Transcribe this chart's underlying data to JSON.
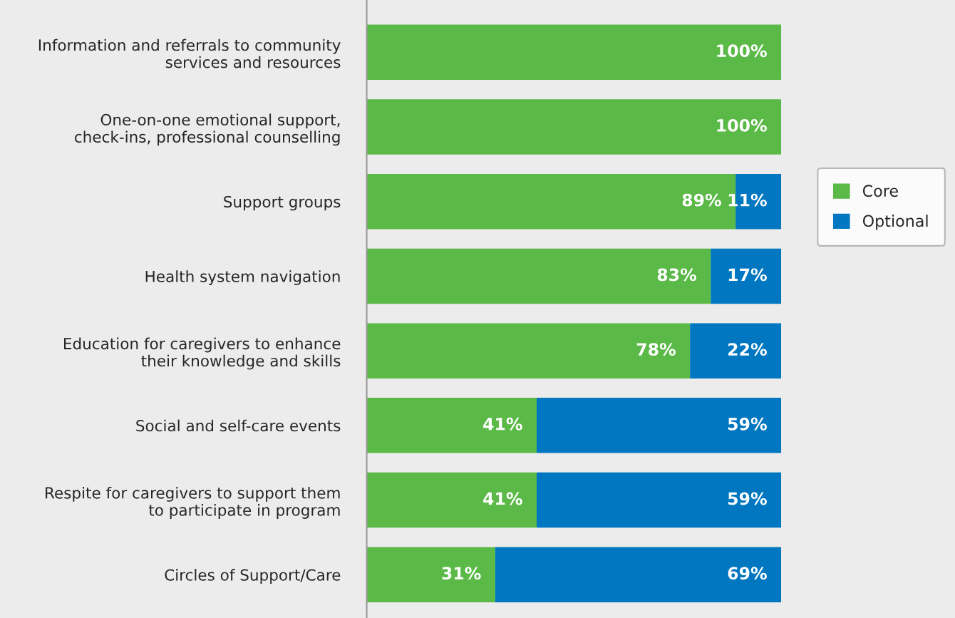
{
  "chart_data": {
    "type": "bar",
    "orientation": "horizontal",
    "stacked": true,
    "legend": "right",
    "grid": false,
    "categories": [
      "Information and referrals to community\nservices and resources",
      "One-on-one emotional support,\ncheck-ins, professional counselling",
      "Support groups",
      "Health system navigation",
      "Education for caregivers to enhance\ntheir knowledge and skills",
      "Social and self-care events",
      "Respite for caregivers to support them\nto participate in program",
      "Circles of Support/Care"
    ],
    "series": [
      {
        "name": "Core",
        "color": "#5bb947",
        "values": [
          100,
          100,
          89,
          83,
          78,
          41,
          41,
          31
        ],
        "value_labels": [
          "100%",
          "100%",
          "89%",
          "83%",
          "78%",
          "41%",
          "41%",
          "31%"
        ]
      },
      {
        "name": "Optional",
        "color": "#0077c0",
        "values": [
          null,
          null,
          11,
          17,
          22,
          59,
          59,
          69
        ],
        "value_labels": [
          null,
          null,
          "11%",
          "17%",
          "22%",
          "59%",
          "59%",
          "69%"
        ]
      }
    ]
  }
}
